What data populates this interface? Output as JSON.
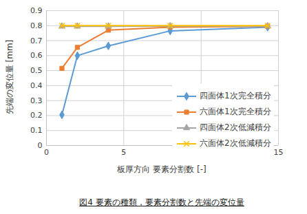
{
  "chart_data": {
    "type": "line",
    "caption": "図4 要素の種類，要素分割数と先端の変位量",
    "x_label": "板厚方向 要素分割数 [-]",
    "y_label": "先端の変位量 [mm]",
    "x": [
      1,
      2,
      4,
      8,
      14.3
    ],
    "series": [
      {
        "name": "四面体1次完全積分",
        "color": "#5b9bd5",
        "marker": "diamond",
        "values": [
          0.205,
          0.6,
          0.665,
          0.765,
          0.79
        ]
      },
      {
        "name": "六面体1次完全積分",
        "color": "#ed7d31",
        "marker": "square",
        "values": [
          0.515,
          0.655,
          0.77,
          0.79,
          0.795
        ]
      },
      {
        "name": "四面体2次低減積分",
        "color": "#a5a5a5",
        "marker": "triangle",
        "values": [
          0.795,
          0.795,
          0.795,
          0.797,
          0.797
        ]
      },
      {
        "name": "六面体2次低減積分",
        "color": "#ffc000",
        "marker": "x",
        "values": [
          0.8,
          0.8,
          0.8,
          0.8,
          0.8
        ]
      }
    ],
    "xlim": [
      0,
      15
    ],
    "xticks": [
      0,
      5,
      10,
      15
    ],
    "ylim": [
      0,
      0.9
    ],
    "yticks": [
      0,
      0.1,
      0.2,
      0.3,
      0.4,
      0.5,
      0.6,
      0.7,
      0.8,
      0.9
    ],
    "grid": true,
    "legend": "right"
  }
}
